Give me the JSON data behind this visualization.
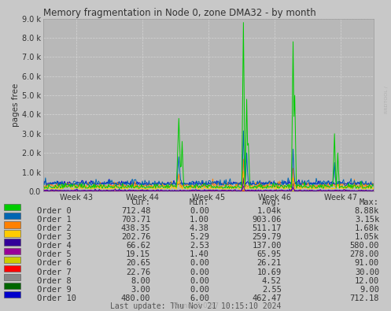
{
  "title": "Memory fragmentation in Node 0, zone DMA32 - by month",
  "ylabel": "pages free",
  "xlabel_ticks": [
    "Week 43",
    "Week 44",
    "Week 45",
    "Week 46",
    "Week 47"
  ],
  "ylim": [
    0,
    9000
  ],
  "yticks": [
    0,
    1000,
    2000,
    3000,
    4000,
    5000,
    6000,
    7000,
    8000,
    9000
  ],
  "ytick_labels": [
    "0.0",
    "1.0 k",
    "2.0 k",
    "3.0 k",
    "4.0 k",
    "5.0 k",
    "6.0 k",
    "7.0 k",
    "8.0 k",
    "9.0 k"
  ],
  "bg_color": "#c8c8c8",
  "plot_bg_color": "#b8b8b8",
  "grid_color": "#d8d8d8",
  "colors": [
    "#00cc00",
    "#0066b3",
    "#ff8000",
    "#ffcc00",
    "#330099",
    "#990099",
    "#cccc00",
    "#ff0000",
    "#888888",
    "#006600",
    "#0000cc"
  ],
  "legend_data": {
    "headers": [
      "Cur:",
      "Min:",
      "Avg:",
      "Max:"
    ],
    "rows": [
      [
        "Order 0",
        "712.48",
        "0.00",
        "1.04k",
        "8.88k"
      ],
      [
        "Order 1",
        "703.71",
        "1.00",
        "903.06",
        "3.15k"
      ],
      [
        "Order 2",
        "438.35",
        "4.38",
        "511.17",
        "1.68k"
      ],
      [
        "Order 3",
        "202.76",
        "5.29",
        "259.79",
        "1.05k"
      ],
      [
        "Order 4",
        "66.62",
        "2.53",
        "137.00",
        "580.00"
      ],
      [
        "Order 5",
        "19.15",
        "1.40",
        "65.95",
        "278.00"
      ],
      [
        "Order 6",
        "20.65",
        "0.00",
        "26.21",
        "91.00"
      ],
      [
        "Order 7",
        "22.76",
        "0.00",
        "10.69",
        "30.00"
      ],
      [
        "Order 8",
        "8.00",
        "0.00",
        "4.52",
        "12.00"
      ],
      [
        "Order 9",
        "3.00",
        "0.00",
        "2.55",
        "9.00"
      ],
      [
        "Order 10",
        "480.00",
        "6.00",
        "462.47",
        "712.18"
      ]
    ]
  },
  "last_update": "Last update: Thu Nov 21 10:15:10 2024",
  "munin_version": "Munin 2.0.67",
  "rrdtool_label": "RRDTOOL /",
  "num_points": 400
}
